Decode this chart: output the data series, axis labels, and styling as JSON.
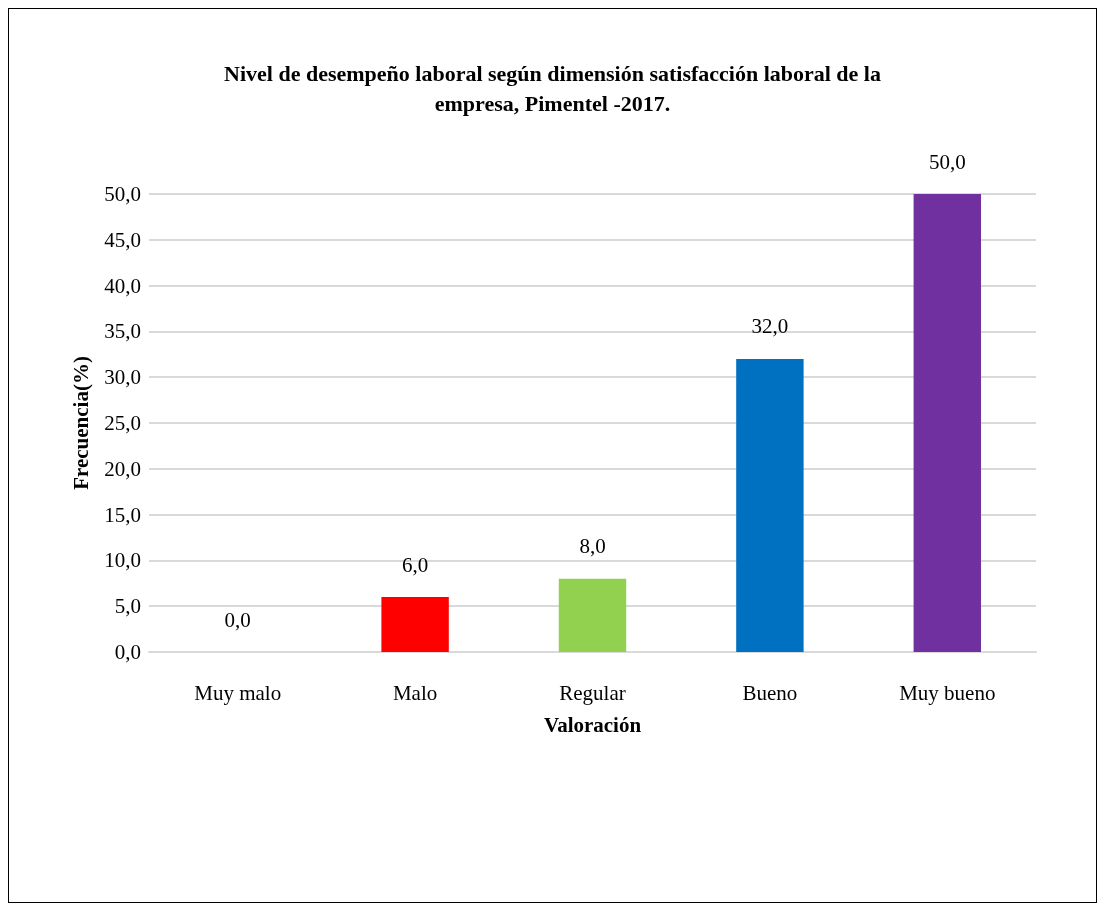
{
  "chart_data": {
    "type": "bar",
    "title": "Nivel de desempeño laboral según dimensión satisfacción laboral de la\nempresa, Pimentel -2017.",
    "xlabel": "Valoración",
    "ylabel": "Frecuencia(%)",
    "categories": [
      "Muy malo",
      "Malo",
      "Regular",
      "Bueno",
      "Muy bueno"
    ],
    "values": [
      0,
      6,
      8,
      32,
      50
    ],
    "colors": [
      "#c8c800",
      "#ff0000",
      "#92d050",
      "#0070c0",
      "#7030a0"
    ],
    "value_labels": [
      "0,0",
      "6,0",
      "8,0",
      "32,0",
      "50,0"
    ],
    "ylim": [
      0,
      50
    ],
    "yticks": [
      {
        "value": 0,
        "label": "0,0"
      },
      {
        "value": 5,
        "label": "5,0"
      },
      {
        "value": 10,
        "label": "10,0"
      },
      {
        "value": 15,
        "label": "15,0"
      },
      {
        "value": 20,
        "label": "20,0"
      },
      {
        "value": 25,
        "label": "25,0"
      },
      {
        "value": 30,
        "label": "30,0"
      },
      {
        "value": 35,
        "label": "35,0"
      },
      {
        "value": 40,
        "label": "40,0"
      },
      {
        "value": 45,
        "label": "45,0"
      },
      {
        "value": 50,
        "label": "50,0"
      }
    ],
    "grid": "y"
  }
}
